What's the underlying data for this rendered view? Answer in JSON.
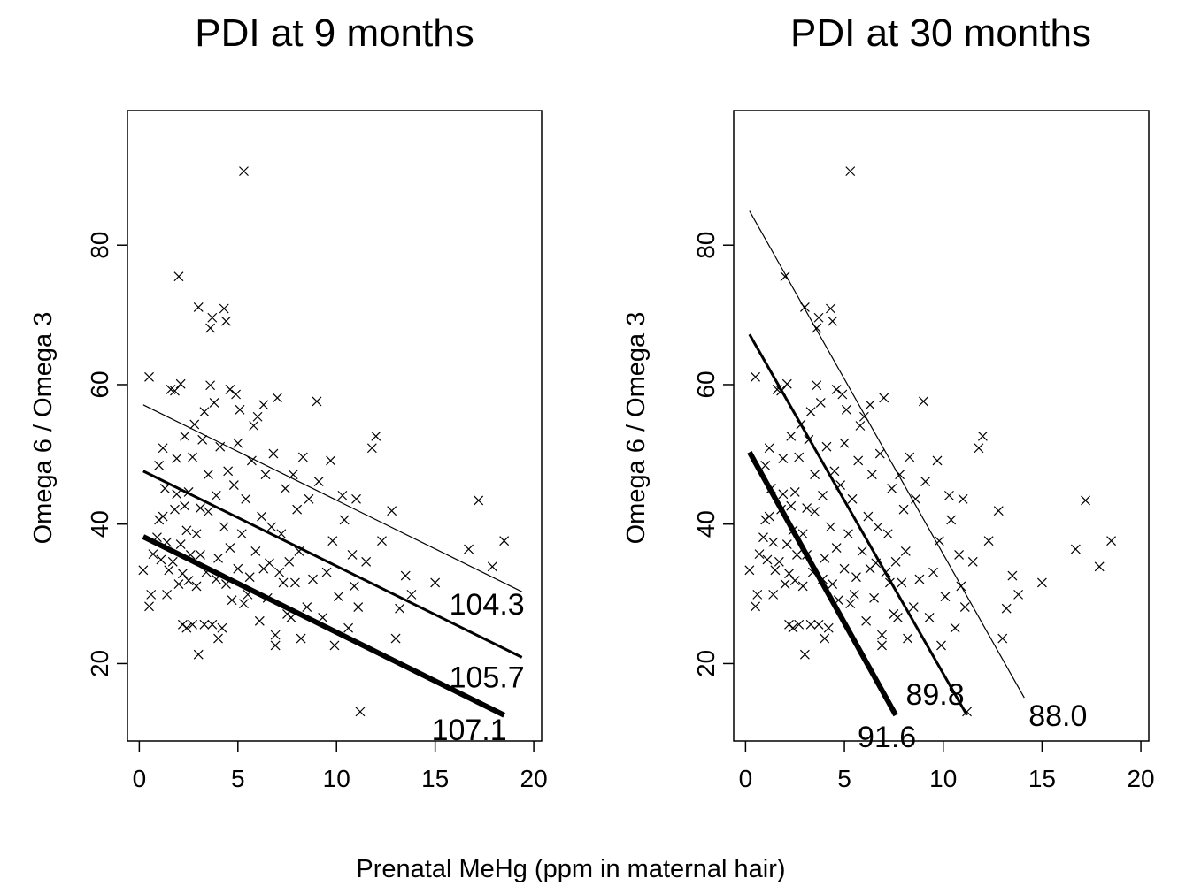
{
  "figure": {
    "xlabel": "Prenatal MeHg (ppm in maternal hair)"
  },
  "chart_data": [
    {
      "type": "scatter",
      "title": "PDI at 9 months",
      "xlabel": "",
      "ylabel": "Omega 6 / Omega 3",
      "xlim": [
        -0.6,
        20.4
      ],
      "ylim": [
        8.9,
        99.3
      ],
      "x_ticks": [
        0,
        5,
        10,
        15,
        20
      ],
      "y_ticks": [
        20,
        40,
        60,
        80
      ],
      "marker": "x",
      "grid": false,
      "points": [
        {
          "x": 0.2,
          "y": 33.4
        },
        {
          "x": 0.5,
          "y": 61.1
        },
        {
          "x": 0.5,
          "y": 28.2
        },
        {
          "x": 0.6,
          "y": 29.9
        },
        {
          "x": 0.7,
          "y": 35.7
        },
        {
          "x": 0.9,
          "y": 38.1
        },
        {
          "x": 1.0,
          "y": 40.6
        },
        {
          "x": 1.0,
          "y": 48.4
        },
        {
          "x": 1.1,
          "y": 34.9
        },
        {
          "x": 1.2,
          "y": 41.1
        },
        {
          "x": 1.2,
          "y": 50.9
        },
        {
          "x": 1.3,
          "y": 45.1
        },
        {
          "x": 1.4,
          "y": 37.4
        },
        {
          "x": 1.4,
          "y": 29.9
        },
        {
          "x": 1.5,
          "y": 33.4
        },
        {
          "x": 1.6,
          "y": 59.3
        },
        {
          "x": 1.7,
          "y": 34.6
        },
        {
          "x": 1.8,
          "y": 59.1
        },
        {
          "x": 1.8,
          "y": 42.1
        },
        {
          "x": 1.9,
          "y": 44.3
        },
        {
          "x": 1.9,
          "y": 49.4
        },
        {
          "x": 2.0,
          "y": 75.5
        },
        {
          "x": 2.0,
          "y": 31.4
        },
        {
          "x": 2.1,
          "y": 37.1
        },
        {
          "x": 2.1,
          "y": 60.1
        },
        {
          "x": 2.2,
          "y": 25.6
        },
        {
          "x": 2.2,
          "y": 32.9
        },
        {
          "x": 2.3,
          "y": 42.6
        },
        {
          "x": 2.3,
          "y": 52.6
        },
        {
          "x": 2.4,
          "y": 39.1
        },
        {
          "x": 2.4,
          "y": 25.1
        },
        {
          "x": 2.5,
          "y": 31.9
        },
        {
          "x": 2.5,
          "y": 44.6
        },
        {
          "x": 2.6,
          "y": 35.6
        },
        {
          "x": 2.7,
          "y": 49.6
        },
        {
          "x": 2.7,
          "y": 25.6
        },
        {
          "x": 2.8,
          "y": 54.3
        },
        {
          "x": 2.9,
          "y": 31.1
        },
        {
          "x": 2.9,
          "y": 38.6
        },
        {
          "x": 3.0,
          "y": 71.1
        },
        {
          "x": 3.0,
          "y": 21.3
        },
        {
          "x": 3.1,
          "y": 42.3
        },
        {
          "x": 3.1,
          "y": 35.6
        },
        {
          "x": 3.2,
          "y": 52.1
        },
        {
          "x": 3.3,
          "y": 25.6
        },
        {
          "x": 3.3,
          "y": 56.1
        },
        {
          "x": 3.4,
          "y": 33.1
        },
        {
          "x": 3.5,
          "y": 41.8
        },
        {
          "x": 3.5,
          "y": 47.1
        },
        {
          "x": 3.6,
          "y": 68.1
        },
        {
          "x": 3.6,
          "y": 59.9
        },
        {
          "x": 3.7,
          "y": 69.6
        },
        {
          "x": 3.7,
          "y": 25.6
        },
        {
          "x": 3.8,
          "y": 57.4
        },
        {
          "x": 3.9,
          "y": 32.1
        },
        {
          "x": 3.9,
          "y": 44.1
        },
        {
          "x": 4.0,
          "y": 35.1
        },
        {
          "x": 4.0,
          "y": 23.6
        },
        {
          "x": 4.1,
          "y": 51.1
        },
        {
          "x": 4.2,
          "y": 25.1
        },
        {
          "x": 4.3,
          "y": 70.9
        },
        {
          "x": 4.3,
          "y": 39.6
        },
        {
          "x": 4.4,
          "y": 69.1
        },
        {
          "x": 4.4,
          "y": 31.4
        },
        {
          "x": 4.5,
          "y": 47.6
        },
        {
          "x": 4.6,
          "y": 59.3
        },
        {
          "x": 4.6,
          "y": 36.6
        },
        {
          "x": 4.7,
          "y": 29.1
        },
        {
          "x": 4.8,
          "y": 45.6
        },
        {
          "x": 4.9,
          "y": 58.6
        },
        {
          "x": 5.0,
          "y": 33.6
        },
        {
          "x": 5.0,
          "y": 51.6
        },
        {
          "x": 5.1,
          "y": 56.4
        },
        {
          "x": 5.2,
          "y": 38.6
        },
        {
          "x": 5.3,
          "y": 90.6
        },
        {
          "x": 5.3,
          "y": 28.6
        },
        {
          "x": 5.4,
          "y": 43.6
        },
        {
          "x": 5.5,
          "y": 29.9
        },
        {
          "x": 5.6,
          "y": 32.4
        },
        {
          "x": 5.7,
          "y": 49.1
        },
        {
          "x": 5.8,
          "y": 54.1
        },
        {
          "x": 5.9,
          "y": 36.1
        },
        {
          "x": 6.0,
          "y": 55.4
        },
        {
          "x": 6.1,
          "y": 26.1
        },
        {
          "x": 6.2,
          "y": 41.1
        },
        {
          "x": 6.3,
          "y": 57.1
        },
        {
          "x": 6.3,
          "y": 33.6
        },
        {
          "x": 6.4,
          "y": 47.1
        },
        {
          "x": 6.5,
          "y": 29.4
        },
        {
          "x": 6.6,
          "y": 34.4
        },
        {
          "x": 6.7,
          "y": 39.6
        },
        {
          "x": 6.8,
          "y": 50.1
        },
        {
          "x": 6.9,
          "y": 24.1
        },
        {
          "x": 6.9,
          "y": 22.6
        },
        {
          "x": 7.0,
          "y": 58.1
        },
        {
          "x": 7.1,
          "y": 33.1
        },
        {
          "x": 7.2,
          "y": 38.6
        },
        {
          "x": 7.3,
          "y": 31.6
        },
        {
          "x": 7.4,
          "y": 45.1
        },
        {
          "x": 7.5,
          "y": 27.1
        },
        {
          "x": 7.6,
          "y": 34.6
        },
        {
          "x": 7.7,
          "y": 26.6
        },
        {
          "x": 7.8,
          "y": 47.1
        },
        {
          "x": 7.9,
          "y": 31.6
        },
        {
          "x": 8.0,
          "y": 42.1
        },
        {
          "x": 8.1,
          "y": 36.1
        },
        {
          "x": 8.2,
          "y": 23.6
        },
        {
          "x": 8.3,
          "y": 49.6
        },
        {
          "x": 8.5,
          "y": 28.1
        },
        {
          "x": 8.6,
          "y": 43.6
        },
        {
          "x": 8.8,
          "y": 32.1
        },
        {
          "x": 9.0,
          "y": 57.6
        },
        {
          "x": 9.1,
          "y": 46.1
        },
        {
          "x": 9.3,
          "y": 26.6
        },
        {
          "x": 9.5,
          "y": 33.1
        },
        {
          "x": 9.7,
          "y": 49.1
        },
        {
          "x": 9.8,
          "y": 37.6
        },
        {
          "x": 9.9,
          "y": 22.6
        },
        {
          "x": 10.1,
          "y": 29.6
        },
        {
          "x": 10.3,
          "y": 44.1
        },
        {
          "x": 10.4,
          "y": 40.6
        },
        {
          "x": 10.6,
          "y": 25.1
        },
        {
          "x": 10.8,
          "y": 35.6
        },
        {
          "x": 10.9,
          "y": 31.1
        },
        {
          "x": 11.0,
          "y": 43.6
        },
        {
          "x": 11.1,
          "y": 28.1
        },
        {
          "x": 11.2,
          "y": 13.1
        },
        {
          "x": 11.5,
          "y": 34.6
        },
        {
          "x": 11.8,
          "y": 50.9
        },
        {
          "x": 12.0,
          "y": 52.6
        },
        {
          "x": 12.3,
          "y": 37.6
        },
        {
          "x": 12.8,
          "y": 41.9
        },
        {
          "x": 13.0,
          "y": 23.6
        },
        {
          "x": 13.2,
          "y": 27.9
        },
        {
          "x": 13.5,
          "y": 32.6
        },
        {
          "x": 13.8,
          "y": 29.9
        },
        {
          "x": 15.0,
          "y": 31.6
        },
        {
          "x": 16.7,
          "y": 36.4
        },
        {
          "x": 17.2,
          "y": 43.4
        },
        {
          "x": 17.9,
          "y": 33.9
        },
        {
          "x": 18.5,
          "y": 37.6
        }
      ],
      "lines": [
        {
          "label": "104.3",
          "x": [
            0.2,
            19.4
          ],
          "y": [
            57.1,
            30.3
          ],
          "weight": "thin"
        },
        {
          "label": "105.7",
          "x": [
            0.2,
            19.4
          ],
          "y": [
            47.6,
            20.9
          ],
          "weight": "medium"
        },
        {
          "label": "107.1",
          "x": [
            0.2,
            18.5
          ],
          "y": [
            38.2,
            12.6
          ],
          "weight": "thick"
        }
      ]
    },
    {
      "type": "scatter",
      "title": "PDI at 30 months",
      "xlabel": "",
      "ylabel": "Omega 6 / Omega 3",
      "xlim": [
        -0.6,
        20.4
      ],
      "ylim": [
        8.9,
        99.3
      ],
      "x_ticks": [
        0,
        5,
        10,
        15,
        20
      ],
      "y_ticks": [
        20,
        40,
        60,
        80
      ],
      "marker": "x",
      "grid": false,
      "points": [
        {
          "x": 0.2,
          "y": 33.4
        },
        {
          "x": 0.5,
          "y": 61.1
        },
        {
          "x": 0.5,
          "y": 28.2
        },
        {
          "x": 0.6,
          "y": 29.9
        },
        {
          "x": 0.7,
          "y": 35.7
        },
        {
          "x": 0.9,
          "y": 38.1
        },
        {
          "x": 1.0,
          "y": 40.6
        },
        {
          "x": 1.0,
          "y": 48.4
        },
        {
          "x": 1.1,
          "y": 34.9
        },
        {
          "x": 1.2,
          "y": 41.1
        },
        {
          "x": 1.2,
          "y": 50.9
        },
        {
          "x": 1.3,
          "y": 45.1
        },
        {
          "x": 1.4,
          "y": 37.4
        },
        {
          "x": 1.4,
          "y": 29.9
        },
        {
          "x": 1.5,
          "y": 33.4
        },
        {
          "x": 1.6,
          "y": 59.3
        },
        {
          "x": 1.7,
          "y": 34.6
        },
        {
          "x": 1.8,
          "y": 59.1
        },
        {
          "x": 1.8,
          "y": 42.1
        },
        {
          "x": 1.9,
          "y": 44.3
        },
        {
          "x": 1.9,
          "y": 49.4
        },
        {
          "x": 2.0,
          "y": 75.5
        },
        {
          "x": 2.0,
          "y": 31.4
        },
        {
          "x": 2.1,
          "y": 37.1
        },
        {
          "x": 2.1,
          "y": 60.1
        },
        {
          "x": 2.2,
          "y": 25.6
        },
        {
          "x": 2.2,
          "y": 32.9
        },
        {
          "x": 2.3,
          "y": 42.6
        },
        {
          "x": 2.3,
          "y": 52.6
        },
        {
          "x": 2.4,
          "y": 39.1
        },
        {
          "x": 2.4,
          "y": 25.1
        },
        {
          "x": 2.5,
          "y": 31.9
        },
        {
          "x": 2.5,
          "y": 44.6
        },
        {
          "x": 2.6,
          "y": 35.6
        },
        {
          "x": 2.7,
          "y": 49.6
        },
        {
          "x": 2.7,
          "y": 25.6
        },
        {
          "x": 2.8,
          "y": 54.3
        },
        {
          "x": 2.9,
          "y": 31.1
        },
        {
          "x": 2.9,
          "y": 38.6
        },
        {
          "x": 3.0,
          "y": 71.1
        },
        {
          "x": 3.0,
          "y": 21.3
        },
        {
          "x": 3.1,
          "y": 42.3
        },
        {
          "x": 3.1,
          "y": 35.6
        },
        {
          "x": 3.2,
          "y": 52.1
        },
        {
          "x": 3.3,
          "y": 25.6
        },
        {
          "x": 3.3,
          "y": 56.1
        },
        {
          "x": 3.4,
          "y": 33.1
        },
        {
          "x": 3.5,
          "y": 41.8
        },
        {
          "x": 3.5,
          "y": 47.1
        },
        {
          "x": 3.6,
          "y": 68.1
        },
        {
          "x": 3.6,
          "y": 59.9
        },
        {
          "x": 3.7,
          "y": 69.6
        },
        {
          "x": 3.7,
          "y": 25.6
        },
        {
          "x": 3.8,
          "y": 57.4
        },
        {
          "x": 3.9,
          "y": 32.1
        },
        {
          "x": 3.9,
          "y": 44.1
        },
        {
          "x": 4.0,
          "y": 35.1
        },
        {
          "x": 4.0,
          "y": 23.6
        },
        {
          "x": 4.1,
          "y": 51.1
        },
        {
          "x": 4.2,
          "y": 25.1
        },
        {
          "x": 4.3,
          "y": 70.9
        },
        {
          "x": 4.3,
          "y": 39.6
        },
        {
          "x": 4.4,
          "y": 69.1
        },
        {
          "x": 4.4,
          "y": 31.4
        },
        {
          "x": 4.5,
          "y": 47.6
        },
        {
          "x": 4.6,
          "y": 59.3
        },
        {
          "x": 4.6,
          "y": 36.6
        },
        {
          "x": 4.7,
          "y": 29.1
        },
        {
          "x": 4.8,
          "y": 45.6
        },
        {
          "x": 4.9,
          "y": 58.6
        },
        {
          "x": 5.0,
          "y": 33.6
        },
        {
          "x": 5.0,
          "y": 51.6
        },
        {
          "x": 5.1,
          "y": 56.4
        },
        {
          "x": 5.2,
          "y": 38.6
        },
        {
          "x": 5.3,
          "y": 90.6
        },
        {
          "x": 5.3,
          "y": 28.6
        },
        {
          "x": 5.4,
          "y": 43.6
        },
        {
          "x": 5.5,
          "y": 29.9
        },
        {
          "x": 5.6,
          "y": 32.4
        },
        {
          "x": 5.7,
          "y": 49.1
        },
        {
          "x": 5.8,
          "y": 54.1
        },
        {
          "x": 5.9,
          "y": 36.1
        },
        {
          "x": 6.0,
          "y": 55.4
        },
        {
          "x": 6.1,
          "y": 26.1
        },
        {
          "x": 6.2,
          "y": 41.1
        },
        {
          "x": 6.3,
          "y": 57.1
        },
        {
          "x": 6.3,
          "y": 33.6
        },
        {
          "x": 6.4,
          "y": 47.1
        },
        {
          "x": 6.5,
          "y": 29.4
        },
        {
          "x": 6.6,
          "y": 34.4
        },
        {
          "x": 6.7,
          "y": 39.6
        },
        {
          "x": 6.8,
          "y": 50.1
        },
        {
          "x": 6.9,
          "y": 24.1
        },
        {
          "x": 6.9,
          "y": 22.6
        },
        {
          "x": 7.0,
          "y": 58.1
        },
        {
          "x": 7.1,
          "y": 33.1
        },
        {
          "x": 7.2,
          "y": 38.6
        },
        {
          "x": 7.3,
          "y": 31.6
        },
        {
          "x": 7.4,
          "y": 45.1
        },
        {
          "x": 7.5,
          "y": 27.1
        },
        {
          "x": 7.6,
          "y": 34.6
        },
        {
          "x": 7.7,
          "y": 26.6
        },
        {
          "x": 7.8,
          "y": 47.1
        },
        {
          "x": 7.9,
          "y": 31.6
        },
        {
          "x": 8.0,
          "y": 42.1
        },
        {
          "x": 8.1,
          "y": 36.1
        },
        {
          "x": 8.2,
          "y": 23.6
        },
        {
          "x": 8.3,
          "y": 49.6
        },
        {
          "x": 8.5,
          "y": 28.1
        },
        {
          "x": 8.6,
          "y": 43.6
        },
        {
          "x": 8.8,
          "y": 32.1
        },
        {
          "x": 9.0,
          "y": 57.6
        },
        {
          "x": 9.1,
          "y": 46.1
        },
        {
          "x": 9.3,
          "y": 26.6
        },
        {
          "x": 9.5,
          "y": 33.1
        },
        {
          "x": 9.7,
          "y": 49.1
        },
        {
          "x": 9.8,
          "y": 37.6
        },
        {
          "x": 9.9,
          "y": 22.6
        },
        {
          "x": 10.1,
          "y": 29.6
        },
        {
          "x": 10.3,
          "y": 44.1
        },
        {
          "x": 10.4,
          "y": 40.6
        },
        {
          "x": 10.6,
          "y": 25.1
        },
        {
          "x": 10.8,
          "y": 35.6
        },
        {
          "x": 10.9,
          "y": 31.1
        },
        {
          "x": 11.0,
          "y": 43.6
        },
        {
          "x": 11.1,
          "y": 28.1
        },
        {
          "x": 11.2,
          "y": 13.1
        },
        {
          "x": 11.5,
          "y": 34.6
        },
        {
          "x": 11.8,
          "y": 50.9
        },
        {
          "x": 12.0,
          "y": 52.6
        },
        {
          "x": 12.3,
          "y": 37.6
        },
        {
          "x": 12.8,
          "y": 41.9
        },
        {
          "x": 13.0,
          "y": 23.6
        },
        {
          "x": 13.2,
          "y": 27.9
        },
        {
          "x": 13.5,
          "y": 32.6
        },
        {
          "x": 13.8,
          "y": 29.9
        },
        {
          "x": 15.0,
          "y": 31.6
        },
        {
          "x": 16.7,
          "y": 36.4
        },
        {
          "x": 17.2,
          "y": 43.4
        },
        {
          "x": 17.9,
          "y": 33.9
        },
        {
          "x": 18.5,
          "y": 37.6
        }
      ],
      "lines": [
        {
          "label": "88.0",
          "x": [
            0.2,
            14.1
          ],
          "y": [
            84.9,
            15.1
          ],
          "weight": "thin"
        },
        {
          "label": "89.8",
          "x": [
            0.2,
            11.2
          ],
          "y": [
            67.2,
            12.6
          ],
          "weight": "medium"
        },
        {
          "label": "91.6",
          "x": [
            0.2,
            7.6
          ],
          "y": [
            50.3,
            12.6
          ],
          "weight": "thick"
        }
      ]
    }
  ]
}
